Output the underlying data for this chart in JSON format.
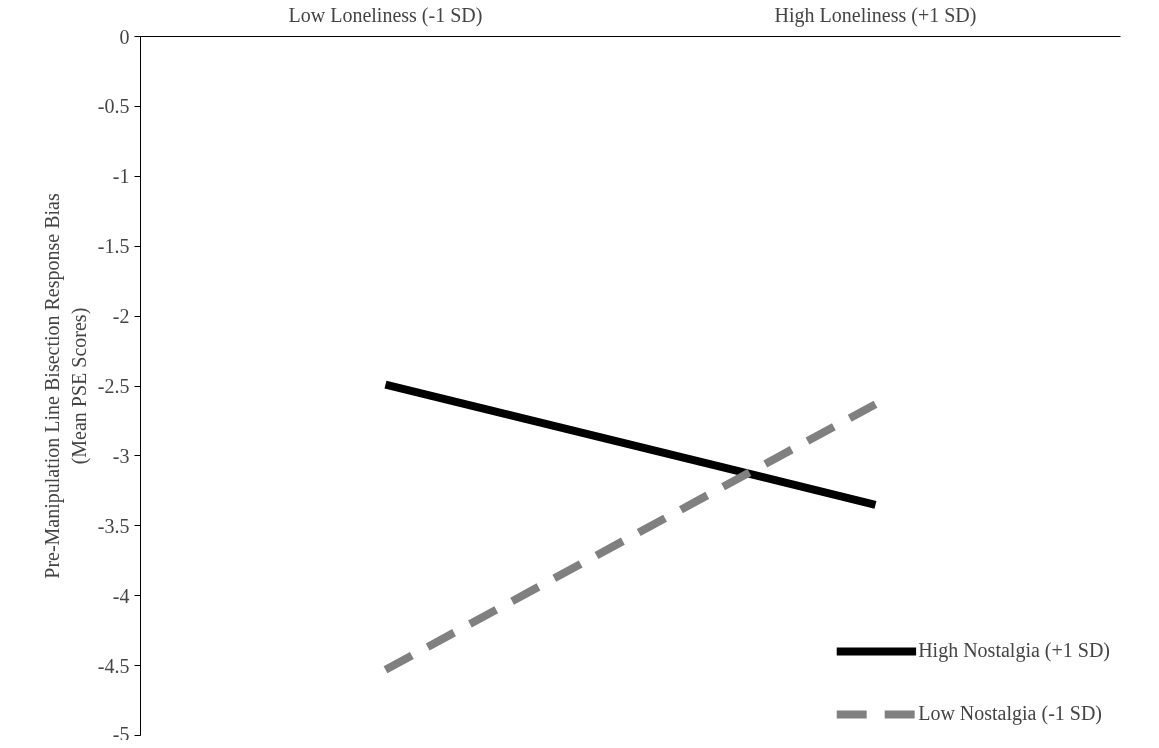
{
  "chart_data": {
    "type": "line",
    "ylabel": "Pre-Manipulation Line Bisection Response Bias\n(Mean PSE Scores)",
    "categories": [
      "Low Loneliness (-1 SD)",
      "High Loneliness (+1 SD)"
    ],
    "series": [
      {
        "name": "High Nostalgia (+1 SD)",
        "color": "#000000",
        "values": [
          -2.49,
          -3.35
        ],
        "line_style": "solid"
      },
      {
        "name": "Low Nostalgia (-1 SD)",
        "color": "#808080",
        "values": [
          -4.53,
          -2.63
        ],
        "line_style": "dashed"
      }
    ],
    "ylim": [
      -5,
      0
    ],
    "yticks": [
      0,
      -0.5,
      -1,
      -1.5,
      -2,
      -2.5,
      -3,
      -3.5,
      -4,
      -4.5,
      -5
    ],
    "grid": false,
    "legend": "bottom right",
    "marker": "none"
  }
}
